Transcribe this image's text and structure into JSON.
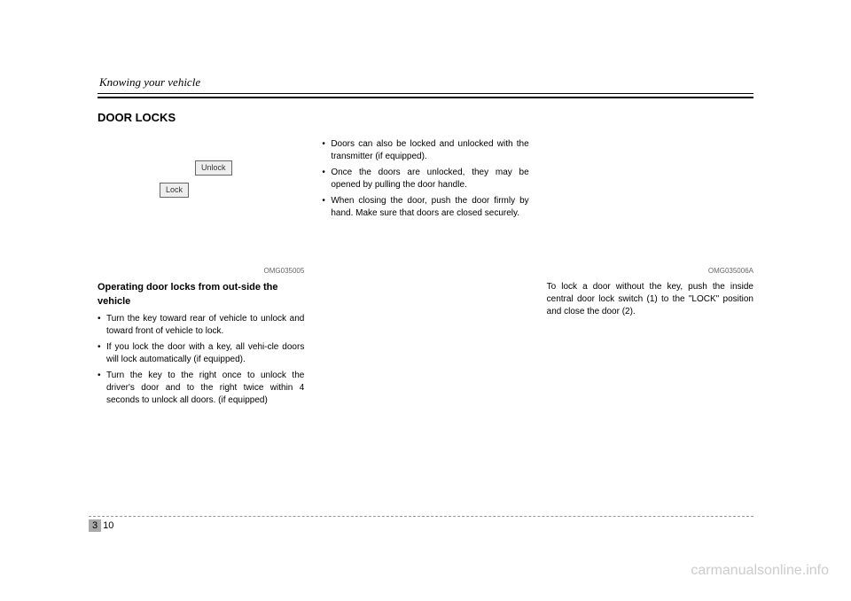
{
  "header": {
    "chapter_title": "Knowing your vehicle"
  },
  "section_title": "DOOR LOCKS",
  "col1": {
    "image": {
      "unlock_label": "Unlock",
      "lock_label": "Lock",
      "id": "OMG035005"
    },
    "subheading": "Operating door locks from out-side the vehicle",
    "bullets": [
      "Turn the key toward rear of vehicle to unlock and toward front of vehicle to lock.",
      "If you lock the door with a key, all vehi-cle doors will lock automatically (if equipped).",
      "Turn the key to the right once to unlock the driver's door and to the right twice within 4 seconds to unlock all doors. (if equipped)"
    ]
  },
  "col2": {
    "bullets": [
      "Doors can also be locked and unlocked with the transmitter (if equipped).",
      "Once the doors are unlocked, they may be opened by pulling the door handle.",
      "When closing the door, push the door firmly by hand. Make sure that doors are closed securely."
    ]
  },
  "col3": {
    "image": {
      "id": "OMG035006A"
    },
    "body": "To lock a door without the key, push the inside central door lock switch (1) to the \"LOCK\" position and close the door (2)."
  },
  "footer": {
    "chapter_num": "3",
    "page_num": "10"
  },
  "watermark": "carmanualsonline.info"
}
